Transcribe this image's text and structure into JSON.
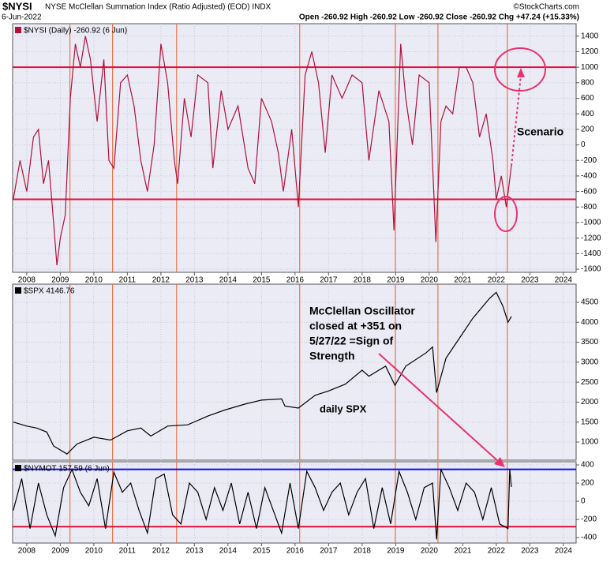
{
  "header": {
    "symbol": "$NYSI",
    "title": "NYSE McClellan Summation Index (Ratio Adjusted) (EOD) INDX",
    "date": "6-Jun-2022",
    "quote": "Open -260.92  High -260.92  Low -260.92  Close -260.92  Chg +47.24 (+15.33%)",
    "credit": "©StockCharts.com"
  },
  "chart_data": [
    {
      "type": "line",
      "legend": "$NYSI (Daily) -260.92 (6 Jun)",
      "x": [
        2007.6,
        2007.8,
        2008.0,
        2008.2,
        2008.35,
        2008.5,
        2008.65,
        2008.8,
        2008.9,
        2009.0,
        2009.15,
        2009.3,
        2009.45,
        2009.6,
        2009.75,
        2009.9,
        2010.1,
        2010.3,
        2010.45,
        2010.6,
        2010.8,
        2011.0,
        2011.2,
        2011.4,
        2011.6,
        2011.8,
        2012.0,
        2012.2,
        2012.4,
        2012.5,
        2012.7,
        2012.9,
        2013.1,
        2013.4,
        2013.55,
        2013.8,
        2014.0,
        2014.3,
        2014.6,
        2014.8,
        2015.0,
        2015.3,
        2015.5,
        2015.65,
        2015.9,
        2016.1,
        2016.3,
        2016.5,
        2016.7,
        2016.9,
        2017.1,
        2017.4,
        2017.7,
        2018.0,
        2018.2,
        2018.5,
        2018.8,
        2018.95,
        2019.15,
        2019.3,
        2019.5,
        2019.7,
        2020.0,
        2020.2,
        2020.35,
        2020.5,
        2020.7,
        2020.9,
        2021.1,
        2021.3,
        2021.5,
        2021.7,
        2021.9,
        2022.0,
        2022.15,
        2022.3,
        2022.45
      ],
      "series": [
        {
          "color": "#b0103a",
          "values": [
            -700,
            -200,
            -600,
            100,
            200,
            -500,
            -200,
            -1000,
            -1550,
            -1200,
            -900,
            600,
            1300,
            1000,
            1400,
            1100,
            300,
            1100,
            -200,
            -300,
            800,
            900,
            500,
            -200,
            -600,
            0,
            1300,
            800,
            -200,
            -500,
            600,
            100,
            900,
            800,
            -300,
            700,
            200,
            500,
            -300,
            -500,
            600,
            300,
            -100,
            -600,
            200,
            -800,
            900,
            1200,
            800,
            -100,
            900,
            600,
            900,
            800,
            -200,
            700,
            300,
            -1100,
            1300,
            600,
            0,
            900,
            800,
            -1250,
            300,
            500,
            400,
            1000,
            1000,
            800,
            100,
            400,
            -200,
            -700,
            -400,
            -800,
            -260.92
          ]
        }
      ],
      "xlim": [
        2007.58,
        2024.38
      ],
      "ylim": [
        -1640,
        1560
      ],
      "yticks": [
        1400,
        1200,
        1000,
        800,
        600,
        400,
        200,
        0,
        -200,
        -400,
        -600,
        -800,
        -1000,
        -1200,
        -1400,
        -1600
      ],
      "xticks": [
        2008,
        2009,
        2010,
        2011,
        2012,
        2013,
        2014,
        2015,
        2016,
        2017,
        2018,
        2019,
        2020,
        2021,
        2022,
        2023,
        2024
      ],
      "grid": true,
      "hlines": [
        {
          "value": 1000,
          "color": "#e0103a"
        },
        {
          "value": -700,
          "color": "#e0103a"
        }
      ],
      "vlines": [
        2009.29,
        2010.56,
        2012.47,
        2016.14,
        2018.99,
        2020.26,
        2022.33
      ],
      "annotations": [
        {
          "text": "Scenario",
          "color": "#e8336d"
        }
      ]
    },
    {
      "type": "line",
      "legend": "$SPX 4146.76",
      "x": [
        2007.6,
        2008.0,
        2008.3,
        2008.6,
        2008.8,
        2009.2,
        2009.5,
        2010.0,
        2010.5,
        2011.0,
        2011.4,
        2011.7,
        2012.2,
        2012.8,
        2013.4,
        2013.9,
        2014.5,
        2015.0,
        2015.6,
        2015.7,
        2016.1,
        2016.6,
        2017.0,
        2017.5,
        2018.0,
        2018.2,
        2018.7,
        2018.98,
        2019.3,
        2019.9,
        2020.1,
        2020.22,
        2020.5,
        2020.9,
        2021.3,
        2021.8,
        2022.0,
        2022.2,
        2022.35,
        2022.45
      ],
      "series": [
        {
          "color": "#000000",
          "values": [
            1500,
            1400,
            1350,
            1250,
            900,
            700,
            950,
            1120,
            1050,
            1280,
            1350,
            1150,
            1400,
            1430,
            1650,
            1800,
            1950,
            2050,
            2080,
            1900,
            1850,
            2170,
            2280,
            2450,
            2800,
            2650,
            2900,
            2420,
            2900,
            3230,
            3380,
            2240,
            3100,
            3600,
            4100,
            4600,
            4750,
            4400,
            4000,
            4146.76
          ]
        }
      ],
      "xlim": [
        2007.58,
        2024.38
      ],
      "ylim": [
        545,
        4955
      ],
      "yticks": [
        4500,
        4000,
        3500,
        3000,
        2500,
        2000,
        1500,
        1000
      ],
      "grid": true,
      "annotations": [
        {
          "lines": [
            "McClellan Oscillator",
            "closed at +351 on",
            "5/27/22 =Sign of",
            "Strength"
          ],
          "color": "#e8336d"
        },
        {
          "text": "daily SPX",
          "color": "#1010d0"
        }
      ]
    },
    {
      "type": "line",
      "legend": "$NYMOT 157.59 (6 Jun)",
      "x": [
        2007.6,
        2007.85,
        2008.1,
        2008.35,
        2008.6,
        2008.85,
        2009.1,
        2009.35,
        2009.6,
        2009.85,
        2010.1,
        2010.35,
        2010.6,
        2010.85,
        2011.1,
        2011.35,
        2011.6,
        2011.85,
        2012.1,
        2012.35,
        2012.6,
        2012.85,
        2013.1,
        2013.35,
        2013.6,
        2013.85,
        2014.1,
        2014.35,
        2014.6,
        2014.85,
        2015.1,
        2015.35,
        2015.6,
        2015.85,
        2016.1,
        2016.35,
        2016.6,
        2016.85,
        2017.1,
        2017.35,
        2017.6,
        2017.85,
        2018.1,
        2018.35,
        2018.6,
        2018.85,
        2019.1,
        2019.35,
        2019.6,
        2019.85,
        2020.1,
        2020.22,
        2020.35,
        2020.6,
        2020.85,
        2021.1,
        2021.35,
        2021.6,
        2021.85,
        2022.1,
        2022.35,
        2022.4,
        2022.45
      ],
      "series": [
        {
          "color": "#000000",
          "values": [
            -100,
            250,
            -300,
            200,
            -150,
            -380,
            150,
            350,
            100,
            -50,
            250,
            -300,
            320,
            100,
            200,
            -100,
            -350,
            250,
            300,
            -150,
            -250,
            200,
            100,
            -200,
            150,
            -100,
            200,
            -250,
            100,
            -300,
            150,
            -100,
            -350,
            200,
            -300,
            330,
            150,
            -100,
            100,
            200,
            -150,
            100,
            250,
            -300,
            150,
            -250,
            330,
            100,
            -200,
            150,
            200,
            -420,
            350,
            150,
            -100,
            200,
            100,
            -200,
            150,
            -250,
            -300,
            351,
            157.59
          ]
        }
      ],
      "xlim": [
        2007.58,
        2024.38
      ],
      "ylim": [
        -460,
        435
      ],
      "yticks": [
        400,
        200,
        0,
        -200,
        -400
      ],
      "xticks": [
        2008,
        2009,
        2010,
        2011,
        2012,
        2013,
        2014,
        2015,
        2016,
        2017,
        2018,
        2019,
        2020,
        2021,
        2022,
        2023,
        2024
      ],
      "grid": true,
      "hlines": [
        {
          "value": 351,
          "color": "#1010e0"
        },
        {
          "value": -280,
          "color": "#e0103a"
        }
      ]
    }
  ]
}
